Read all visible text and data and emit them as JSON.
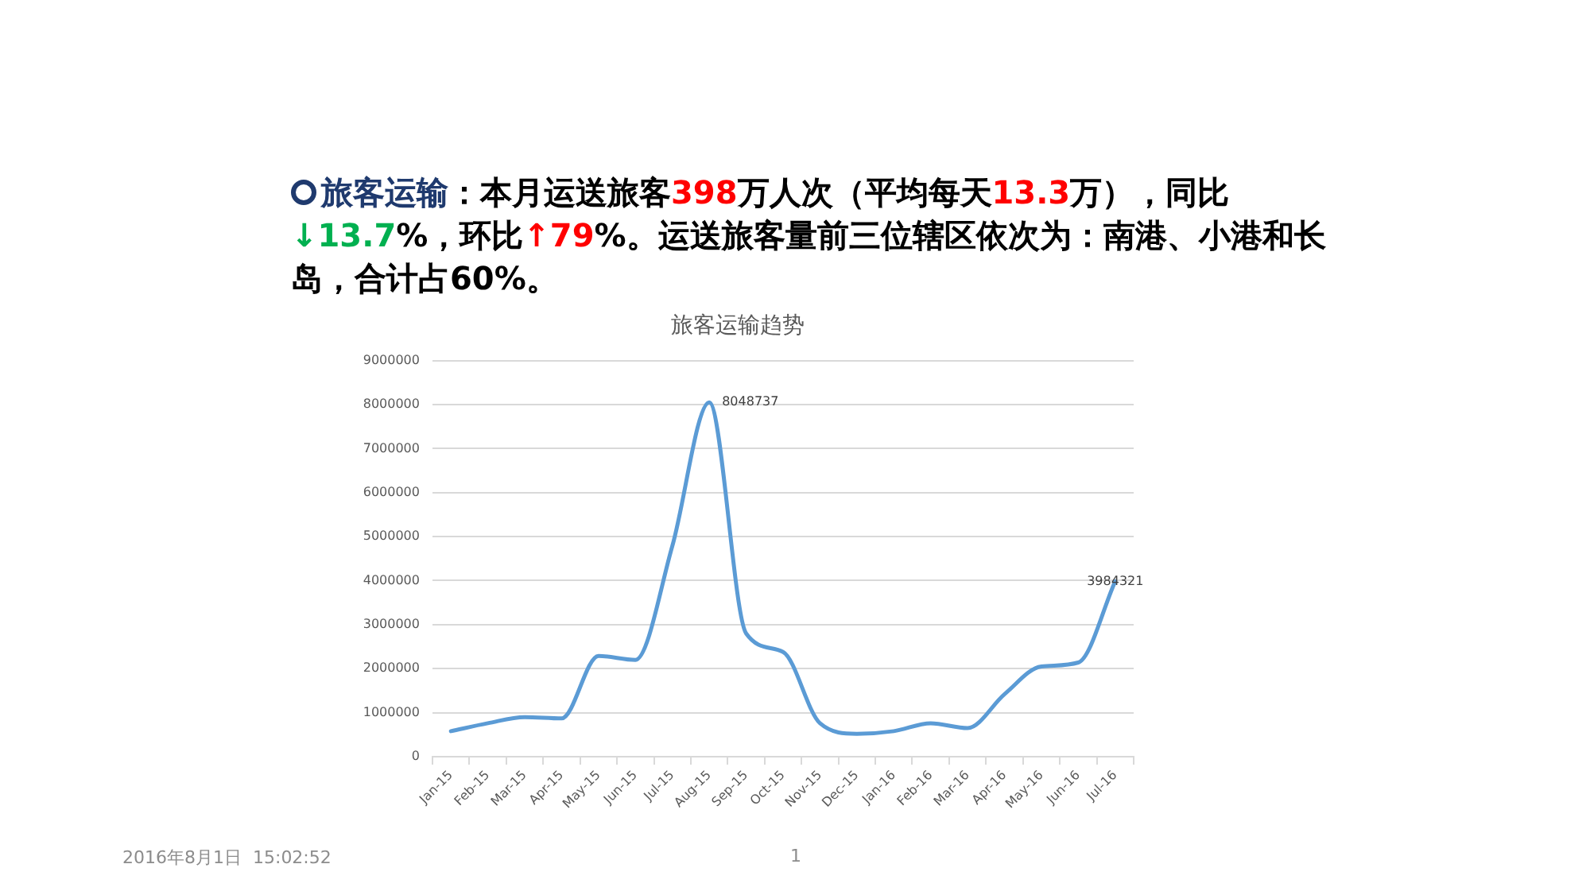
{
  "chart_data": {
    "type": "line",
    "title": "旅客运输趋势",
    "annotations": [
      "旅客运输",
      "：本月运送旅客",
      "398",
      "万人次（平均每天",
      "13.3",
      "万），同比",
      "↓13.7",
      "%，环比",
      "↑79",
      "%。运送旅客量前三位辖区依次为：南港、小港和长",
      "岛，合计占60%。",
      "2016年8月1日  15:02:52",
      "1"
    ],
    "categories": [
      "Jan-15",
      "Feb-15",
      "Mar-15",
      "Apr-15",
      "May-15",
      "Jun-15",
      "Jul-15",
      "Aug-15",
      "Sep-15",
      "Oct-15",
      "Nov-15",
      "Dec-15",
      "Jan-16",
      "Feb-16",
      "Mar-16",
      "Apr-16",
      "May-16",
      "Jun-16",
      "Jul-16"
    ],
    "series": [
      {
        "color": "#5b9bd5",
        "values": [
          580000,
          760000,
          900000,
          870000,
          2290000,
          2200000,
          4790000,
          8048737,
          2800000,
          2380000,
          760000,
          520000,
          580000,
          760000,
          650000,
          1420000,
          2050000,
          2140000,
          3984321
        ],
        "value_labels": [
          null,
          null,
          null,
          null,
          null,
          null,
          null,
          "8048737",
          null,
          null,
          null,
          null,
          null,
          null,
          null,
          null,
          null,
          null,
          "3984321"
        ]
      }
    ],
    "ylim": [
      0,
      9000000
    ],
    "yticks": [
      0,
      1000000,
      2000000,
      3000000,
      4000000,
      5000000,
      6000000,
      7000000,
      8000000,
      9000000
    ],
    "grid": "y"
  }
}
